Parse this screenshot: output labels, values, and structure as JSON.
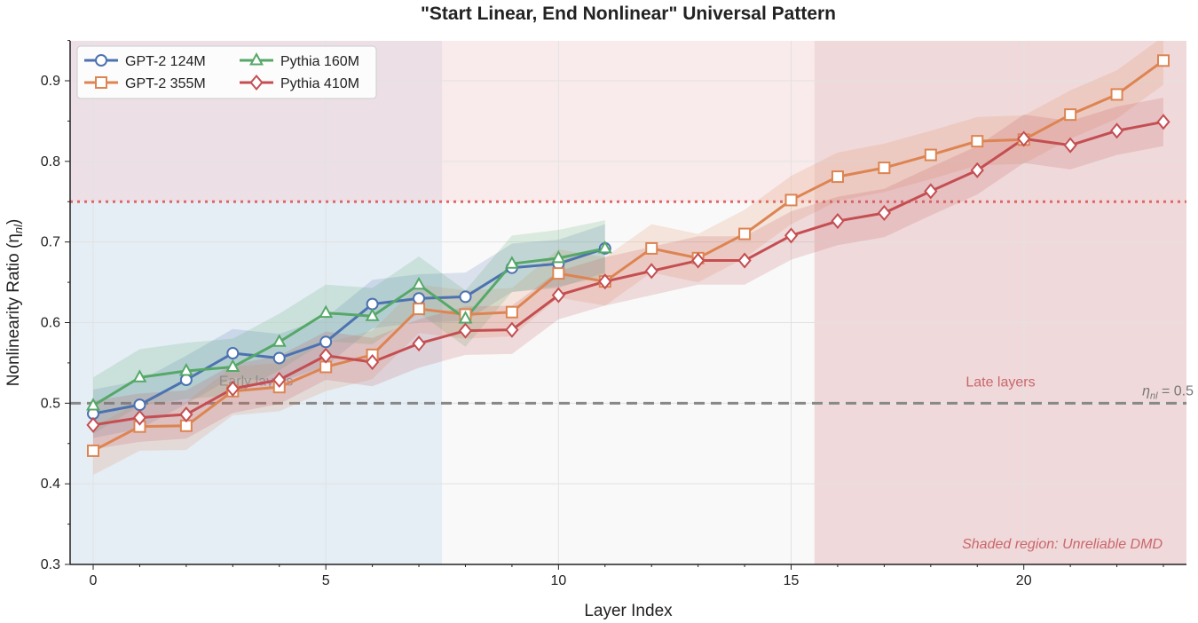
{
  "chart_data": {
    "type": "line",
    "title": "\"Start Linear, End Nonlinear\" Universal Pattern",
    "xlabel": "Layer Index",
    "ylabel": "Nonlinearity Ratio (η",
    "ylabel_sub": "nl",
    "ylabel_close": ")",
    "xlim": [
      -0.5,
      23.7
    ],
    "ylim": [
      0.3,
      0.95
    ],
    "x_ticks": [
      0,
      5,
      10,
      15,
      20
    ],
    "y_ticks": [
      0.3,
      0.4,
      0.5,
      0.6,
      0.7,
      0.8,
      0.9
    ],
    "grid": true,
    "legend_position": "top-left",
    "colors": {
      "gpt2_124m": "#4c72b0",
      "gpt2_355m": "#dd8452",
      "pythia_160m": "#55a868",
      "pythia_410m": "#c44e52",
      "early_region": "#dfe9f3",
      "mid_region": "#f7e3e3",
      "late_region": "#eccfd1",
      "threshold_dotted": "#e06666",
      "baseline_dashed": "#888888"
    },
    "series": [
      {
        "name": "GPT-2 124M",
        "key": "gpt2_124m",
        "marker": "circle",
        "x": [
          0,
          1,
          2,
          3,
          4,
          5,
          6,
          7,
          8,
          9,
          10,
          11
        ],
        "values": [
          0.487,
          0.498,
          0.529,
          0.562,
          0.556,
          0.576,
          0.623,
          0.63,
          0.632,
          0.668,
          0.673,
          0.692
        ],
        "band": 0.03
      },
      {
        "name": "GPT-2 355M",
        "key": "gpt2_355m",
        "marker": "square",
        "x": [
          0,
          1,
          2,
          3,
          4,
          5,
          6,
          7,
          8,
          9,
          10,
          11,
          12,
          13,
          14,
          15,
          16,
          17,
          18,
          19,
          20,
          21,
          22,
          23
        ],
        "values": [
          0.441,
          0.471,
          0.472,
          0.515,
          0.52,
          0.545,
          0.56,
          0.617,
          0.61,
          0.613,
          0.661,
          0.651,
          0.692,
          0.68,
          0.71,
          0.752,
          0.781,
          0.792,
          0.808,
          0.825,
          0.827,
          0.858,
          0.883,
          0.925
        ],
        "band": 0.03
      },
      {
        "name": "Pythia 160M",
        "key": "pythia_160m",
        "marker": "triangle",
        "x": [
          0,
          1,
          2,
          3,
          4,
          5,
          6,
          7,
          8,
          9,
          10,
          11
        ],
        "values": [
          0.497,
          0.532,
          0.54,
          0.545,
          0.576,
          0.612,
          0.608,
          0.647,
          0.605,
          0.673,
          0.68,
          0.692
        ],
        "band": 0.035
      },
      {
        "name": "Pythia 410M",
        "key": "pythia_410m",
        "marker": "diamond",
        "x": [
          0,
          1,
          2,
          3,
          4,
          5,
          6,
          7,
          8,
          9,
          10,
          11,
          12,
          13,
          14,
          15,
          16,
          17,
          18,
          19,
          20,
          21,
          22,
          23
        ],
        "values": [
          0.473,
          0.482,
          0.486,
          0.518,
          0.529,
          0.559,
          0.551,
          0.574,
          0.59,
          0.591,
          0.634,
          0.651,
          0.664,
          0.677,
          0.677,
          0.708,
          0.726,
          0.736,
          0.763,
          0.789,
          0.828,
          0.82,
          0.838,
          0.849
        ],
        "band": 0.03
      }
    ],
    "regions": {
      "early_end": 7.5,
      "late_start": 15.5,
      "unreliable_above": 0.75
    },
    "threshold_line": 0.75,
    "baseline_line": 0.5,
    "annotations": {
      "early": "Early layers",
      "late": "Late layers",
      "baseline": "η",
      "baseline_sub": "nl",
      "baseline_tail": " = 0.5",
      "shaded": "Shaded region: Unreliable DMD"
    }
  }
}
